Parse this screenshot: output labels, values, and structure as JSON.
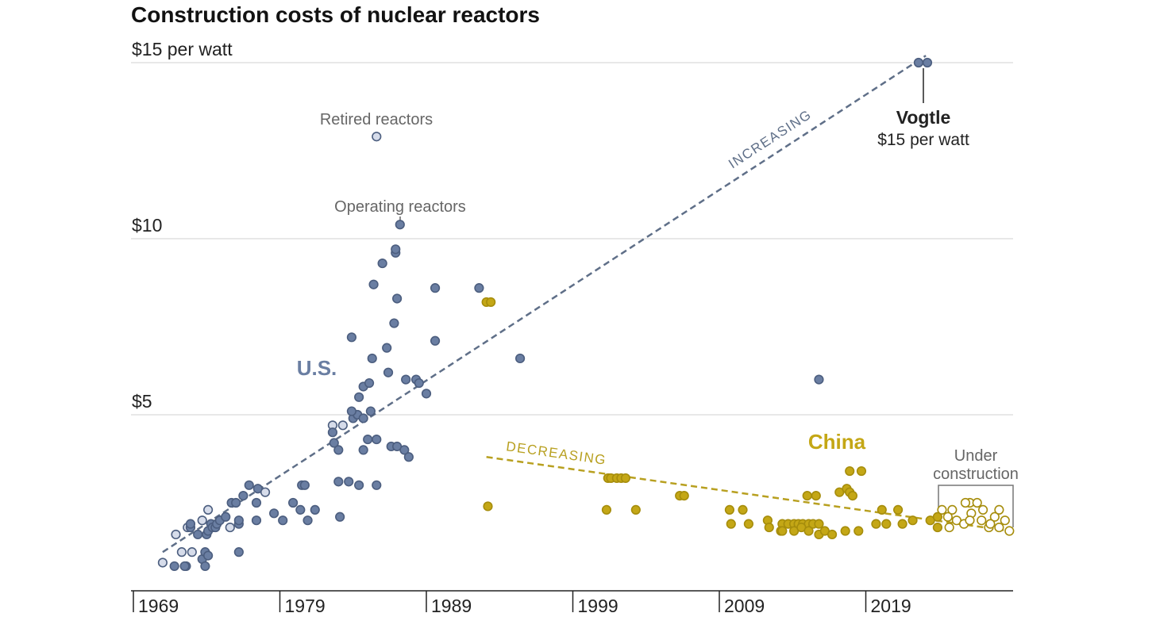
{
  "chart_data": {
    "type": "scatter",
    "title": "Construction costs of nuclear reactors",
    "xlabel": "",
    "ylabel": "",
    "xlim": [
      1969,
      2029
    ],
    "ylim": [
      0,
      15
    ],
    "grid": true,
    "y_ticks": [
      {
        "value": 5,
        "label": "$5"
      },
      {
        "value": 10,
        "label": "$10"
      },
      {
        "value": 15,
        "label": "$15 per watt"
      }
    ],
    "x_ticks": [
      {
        "value": 1969,
        "label": "1969"
      },
      {
        "value": 1979,
        "label": "1979"
      },
      {
        "value": 1989,
        "label": "1989"
      },
      {
        "value": 1999,
        "label": "1999"
      },
      {
        "value": 2009,
        "label": "2009"
      },
      {
        "value": 2019,
        "label": "2019"
      }
    ],
    "colors": {
      "us": "#6a7ea2",
      "us_stroke": "#4c5e7f",
      "us_retired": "#d6dcea",
      "china": "#c4a716",
      "china_stroke": "#a68d0c",
      "us_trend": "#5f6f88",
      "china_trend": "#b8a020"
    },
    "series": [
      {
        "name": "U.S.",
        "point_fields": [
          "year",
          "cost_per_watt",
          "retired"
        ],
        "points": [
          [
            1971.0,
            0.8,
            1
          ],
          [
            1971.9,
            1.6,
            1
          ],
          [
            1971.8,
            0.7,
            0
          ],
          [
            1972.6,
            0.7,
            0
          ],
          [
            1972.5,
            0.7,
            0
          ],
          [
            1972.3,
            1.1,
            1
          ],
          [
            1973.0,
            1.1,
            1
          ],
          [
            1973.7,
            0.9,
            0
          ],
          [
            1973.9,
            0.7,
            0
          ],
          [
            1973.9,
            1.1,
            0
          ],
          [
            1974.1,
            1.0,
            0
          ],
          [
            1972.7,
            1.8,
            1
          ],
          [
            1972.9,
            1.8,
            0
          ],
          [
            1973.4,
            1.6,
            0
          ],
          [
            1974.0,
            1.6,
            0
          ],
          [
            1974.3,
            1.9,
            0
          ],
          [
            1974.1,
            1.7,
            0
          ],
          [
            1974.4,
            1.8,
            0
          ],
          [
            1974.6,
            1.8,
            0
          ],
          [
            1974.7,
            1.9,
            0
          ],
          [
            1974.9,
            2.0,
            0
          ],
          [
            1975.3,
            2.1,
            0
          ],
          [
            1975.6,
            1.8,
            1
          ],
          [
            1976.2,
            1.9,
            0
          ],
          [
            1976.2,
            2.0,
            0
          ],
          [
            1975.7,
            2.5,
            0
          ],
          [
            1976.0,
            2.5,
            0
          ],
          [
            1976.5,
            2.7,
            0
          ],
          [
            1976.9,
            3.0,
            0
          ],
          [
            1977.4,
            2.5,
            0
          ],
          [
            1977.5,
            2.9,
            0
          ],
          [
            1978.0,
            2.8,
            1
          ],
          [
            1977.4,
            2.0,
            0
          ],
          [
            1976.2,
            1.1,
            0
          ],
          [
            1974.1,
            2.3,
            1
          ],
          [
            1973.7,
            2.0,
            1
          ],
          [
            1972.9,
            1.9,
            0
          ],
          [
            1978.6,
            2.2,
            0
          ],
          [
            1979.2,
            2.0,
            0
          ],
          [
            1979.9,
            2.5,
            0
          ],
          [
            1980.4,
            2.3,
            0
          ],
          [
            1980.9,
            2.0,
            0
          ],
          [
            1981.4,
            2.3,
            0
          ],
          [
            1980.5,
            3.0,
            0
          ],
          [
            1980.7,
            3.0,
            0
          ],
          [
            1983.0,
            3.1,
            0
          ],
          [
            1983.7,
            3.1,
            0
          ],
          [
            1984.4,
            3.0,
            0
          ],
          [
            1985.6,
            3.0,
            0
          ],
          [
            1983.1,
            2.1,
            0
          ],
          [
            1982.6,
            4.7,
            1
          ],
          [
            1983.3,
            4.7,
            1
          ],
          [
            1982.6,
            4.5,
            0
          ],
          [
            1982.7,
            4.2,
            0
          ],
          [
            1983.0,
            4.0,
            0
          ],
          [
            1984.0,
            4.9,
            0
          ],
          [
            1984.3,
            5.0,
            0
          ],
          [
            1984.7,
            4.9,
            0
          ],
          [
            1985.2,
            5.1,
            0
          ],
          [
            1983.9,
            5.1,
            0
          ],
          [
            1984.4,
            5.5,
            0
          ],
          [
            1984.7,
            5.8,
            0
          ],
          [
            1985.1,
            5.9,
            0
          ],
          [
            1983.9,
            7.2,
            0
          ],
          [
            1985.3,
            6.6,
            0
          ],
          [
            1986.3,
            6.9,
            0
          ],
          [
            1986.4,
            6.2,
            0
          ],
          [
            1985.0,
            4.3,
            0
          ],
          [
            1985.6,
            4.3,
            0
          ],
          [
            1984.7,
            4.0,
            0
          ],
          [
            1986.6,
            4.1,
            0
          ],
          [
            1987.0,
            4.1,
            0
          ],
          [
            1987.5,
            4.0,
            0
          ],
          [
            1987.8,
            3.8,
            0
          ],
          [
            1986.8,
            7.6,
            0
          ],
          [
            1987.0,
            8.3,
            0
          ],
          [
            1985.4,
            8.7,
            0
          ],
          [
            1986.0,
            9.3,
            0
          ],
          [
            1986.9,
            9.6,
            0
          ],
          [
            1986.9,
            9.7,
            0
          ],
          [
            1987.2,
            10.4,
            0
          ],
          [
            1985.6,
            12.9,
            1
          ],
          [
            1987.6,
            6.0,
            0
          ],
          [
            1988.3,
            6.0,
            0
          ],
          [
            1988.5,
            5.9,
            0
          ],
          [
            1989.0,
            5.6,
            0
          ],
          [
            1989.6,
            7.1,
            0
          ],
          [
            1989.6,
            8.6,
            0
          ],
          [
            1992.6,
            8.6,
            0
          ],
          [
            1995.4,
            6.6,
            0
          ],
          [
            2015.8,
            6.0,
            0
          ],
          [
            2022.6,
            15.0,
            0
          ],
          [
            2023.2,
            15.0,
            0
          ]
        ]
      },
      {
        "name": "China",
        "point_fields": [
          "year",
          "cost_per_watt",
          "under_construction"
        ],
        "points": [
          [
            1993.1,
            8.2,
            0
          ],
          [
            1993.4,
            8.2,
            0
          ],
          [
            1993.2,
            2.4,
            0
          ],
          [
            2001.3,
            2.3,
            0
          ],
          [
            2001.4,
            3.2,
            0
          ],
          [
            2001.6,
            3.2,
            0
          ],
          [
            2002.0,
            3.2,
            0
          ],
          [
            2002.3,
            3.2,
            0
          ],
          [
            2002.6,
            3.2,
            0
          ],
          [
            2003.3,
            2.3,
            0
          ],
          [
            2006.3,
            2.7,
            0
          ],
          [
            2006.6,
            2.7,
            0
          ],
          [
            2009.7,
            2.3,
            0
          ],
          [
            2010.6,
            2.3,
            0
          ],
          [
            2009.8,
            1.9,
            0
          ],
          [
            2011.0,
            1.9,
            0
          ],
          [
            2012.3,
            2.0,
            0
          ],
          [
            2012.4,
            1.8,
            0
          ],
          [
            2013.3,
            1.9,
            0
          ],
          [
            2013.2,
            1.7,
            0
          ],
          [
            2013.7,
            1.9,
            0
          ],
          [
            2014.1,
            1.9,
            0
          ],
          [
            2014.4,
            1.9,
            0
          ],
          [
            2014.7,
            1.9,
            0
          ],
          [
            2015.1,
            1.9,
            0
          ],
          [
            2015.4,
            1.9,
            0
          ],
          [
            2015.8,
            1.9,
            0
          ],
          [
            2013.3,
            1.7,
            0
          ],
          [
            2014.1,
            1.7,
            0
          ],
          [
            2014.6,
            1.8,
            0
          ],
          [
            2015.1,
            1.7,
            0
          ],
          [
            2015.8,
            1.6,
            0
          ],
          [
            2016.2,
            1.7,
            0
          ],
          [
            2016.7,
            1.6,
            0
          ],
          [
            2017.6,
            1.7,
            0
          ],
          [
            2018.5,
            1.7,
            0
          ],
          [
            2015.0,
            2.7,
            0
          ],
          [
            2015.6,
            2.7,
            0
          ],
          [
            2017.2,
            2.8,
            0
          ],
          [
            2017.7,
            2.9,
            0
          ],
          [
            2017.9,
            2.8,
            0
          ],
          [
            2018.1,
            2.7,
            0
          ],
          [
            2017.9,
            3.4,
            0
          ],
          [
            2018.7,
            3.4,
            0
          ],
          [
            2019.7,
            1.9,
            0
          ],
          [
            2020.4,
            1.9,
            0
          ],
          [
            2020.1,
            2.3,
            0
          ],
          [
            2021.2,
            2.3,
            0
          ],
          [
            2021.5,
            1.9,
            0
          ],
          [
            2022.2,
            2.0,
            0
          ],
          [
            2023.4,
            2.0,
            0
          ],
          [
            2023.9,
            1.8,
            0
          ],
          [
            2023.9,
            2.1,
            0
          ],
          [
            2024.2,
            2.3,
            1
          ],
          [
            2024.9,
            2.3,
            1
          ],
          [
            2024.6,
            2.1,
            1
          ],
          [
            2025.2,
            2.0,
            1
          ],
          [
            2024.7,
            1.8,
            1
          ],
          [
            2025.7,
            1.9,
            1
          ],
          [
            2026.1,
            2.5,
            1
          ],
          [
            2025.8,
            2.5,
            1
          ],
          [
            2026.6,
            2.5,
            1
          ],
          [
            2026.2,
            2.2,
            1
          ],
          [
            2027.0,
            2.3,
            1
          ],
          [
            2026.1,
            2.0,
            1
          ],
          [
            2026.9,
            2.0,
            1
          ],
          [
            2027.8,
            2.1,
            1
          ],
          [
            2028.1,
            2.3,
            1
          ],
          [
            2027.4,
            1.8,
            1
          ],
          [
            2028.1,
            1.8,
            1
          ],
          [
            2027.5,
            1.9,
            1
          ],
          [
            2028.5,
            2.0,
            1
          ],
          [
            2028.8,
            1.7,
            1
          ]
        ]
      }
    ],
    "trend_lines": [
      {
        "name": "US trend",
        "label": "INCREASING",
        "from": [
          1971.0,
          1.1
        ],
        "to": [
          2023.1,
          15.2
        ]
      },
      {
        "name": "China trend",
        "label": "DECREASING",
        "from": [
          1993.1,
          3.8
        ],
        "to": [
          2028.8,
          1.7
        ]
      }
    ],
    "annotations": {
      "us_label": "U.S.",
      "china_label": "China",
      "retired": "Retired reactors",
      "operating": "Operating reactors",
      "vogtle_name": "Vogtle",
      "vogtle_cost": "$15 per watt",
      "under_construction_1": "Under",
      "under_construction_2": "construction"
    }
  }
}
